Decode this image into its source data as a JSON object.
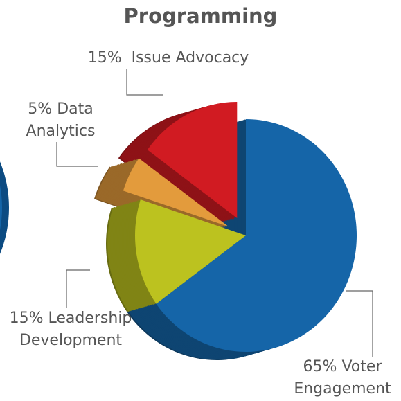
{
  "chart_data": {
    "type": "pie",
    "title": "Programming",
    "categories": [
      "Voter Engagement",
      "Leadership Development",
      "Data Analytics",
      "Issue Advocacy"
    ],
    "values": [
      65,
      15,
      5,
      15
    ],
    "value_labels": [
      "65%",
      "15%",
      "5%",
      "15%"
    ],
    "colors": [
      "#1565a8",
      "#bcc21f",
      "#e39b3c",
      "#d11b22"
    ]
  }
}
